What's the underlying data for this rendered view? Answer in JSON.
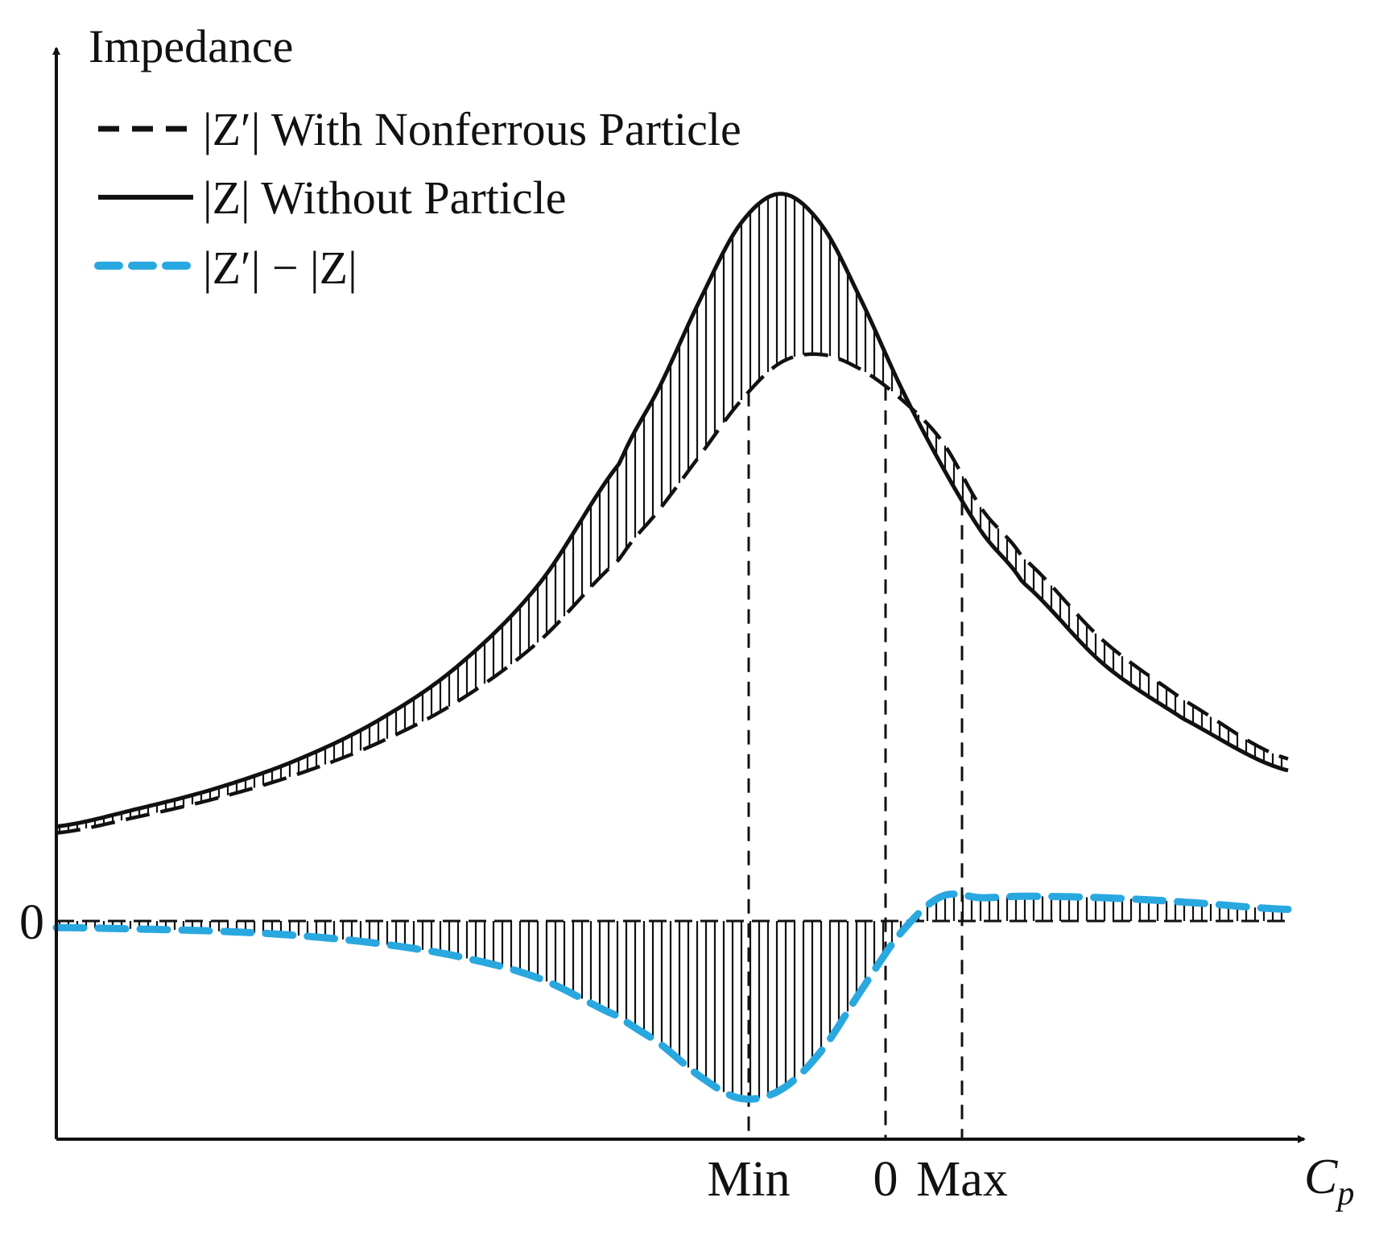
{
  "chart_data": {
    "type": "line",
    "title": "",
    "ylabel": "Impedance",
    "xlabel": "C_p",
    "xlabel_main": "C",
    "xlabel_sub": "p",
    "x_tick_labels": [
      {
        "label": "Min",
        "x": 8.6
      },
      {
        "label": "0",
        "x": 10.3
      },
      {
        "label": "Max",
        "x": 11.25
      }
    ],
    "y_tick_labels": [
      {
        "label": "0",
        "y": 0
      }
    ],
    "xlim": [
      0,
      15.3
    ],
    "ylim": [
      -3.0,
      12.0
    ],
    "legend": {
      "placement": "top-left",
      "entries": [
        {
          "label": "|Z′|  With Nonferrous Particle",
          "style": "dashed",
          "color": "#111111"
        },
        {
          "label": "|Z|  Without Particle",
          "style": "solid",
          "color": "#111111"
        },
        {
          "label": "|Z′| − |Z|",
          "style": "dashed",
          "color": "#29a8e0"
        }
      ]
    },
    "series": [
      {
        "name": "|Z|",
        "style": "solid",
        "color": "#111111",
        "x": [
          0.0,
          1.0,
          2.0,
          3.0,
          4.0,
          5.0,
          6.0,
          7.0,
          7.5,
          8.0,
          8.5,
          9.0,
          9.5,
          10.0,
          10.5,
          11.0,
          11.5,
          12.0,
          13.0,
          14.0,
          15.3
        ],
        "values": [
          1.3,
          1.54,
          1.83,
          2.22,
          2.76,
          3.52,
          4.64,
          6.3,
          7.36,
          8.55,
          9.59,
          10.0,
          9.58,
          8.53,
          7.32,
          6.26,
          5.34,
          4.66,
          3.54,
          2.78,
          2.07
        ]
      },
      {
        "name": "|Z′|",
        "style": "dashed",
        "color": "#111111",
        "x": [
          0.0,
          1.0,
          2.0,
          3.0,
          4.0,
          5.0,
          6.0,
          7.0,
          7.5,
          8.0,
          8.5,
          9.0,
          9.5,
          10.0,
          10.5,
          11.0,
          11.5,
          12.0,
          13.0,
          14.0,
          15.3
        ],
        "values": [
          1.21,
          1.43,
          1.69,
          2.02,
          2.45,
          3.03,
          3.85,
          4.98,
          5.67,
          6.41,
          7.15,
          7.68,
          7.79,
          7.58,
          7.17,
          6.6,
          5.66,
          5.0,
          3.86,
          3.04,
          2.23
        ]
      },
      {
        "name": "|Z′| − |Z|",
        "style": "dashed",
        "color": "#29a8e0",
        "x": [
          0.0,
          1.0,
          2.0,
          3.0,
          4.0,
          5.0,
          6.0,
          7.0,
          7.5,
          8.0,
          8.5,
          9.0,
          9.5,
          10.0,
          10.5,
          11.0,
          11.5,
          12.0,
          13.0,
          14.0,
          15.3
        ],
        "values": [
          -0.09,
          -0.11,
          -0.14,
          -0.2,
          -0.31,
          -0.49,
          -0.79,
          -1.32,
          -1.69,
          -2.14,
          -2.44,
          -2.32,
          -1.79,
          -0.95,
          -0.15,
          0.34,
          0.32,
          0.34,
          0.32,
          0.26,
          0.16
        ]
      }
    ],
    "guides": [
      {
        "x": 8.6,
        "style": "dashed"
      },
      {
        "x": 10.3,
        "style": "dashed"
      },
      {
        "x": 11.25,
        "style": "dashed"
      }
    ]
  }
}
